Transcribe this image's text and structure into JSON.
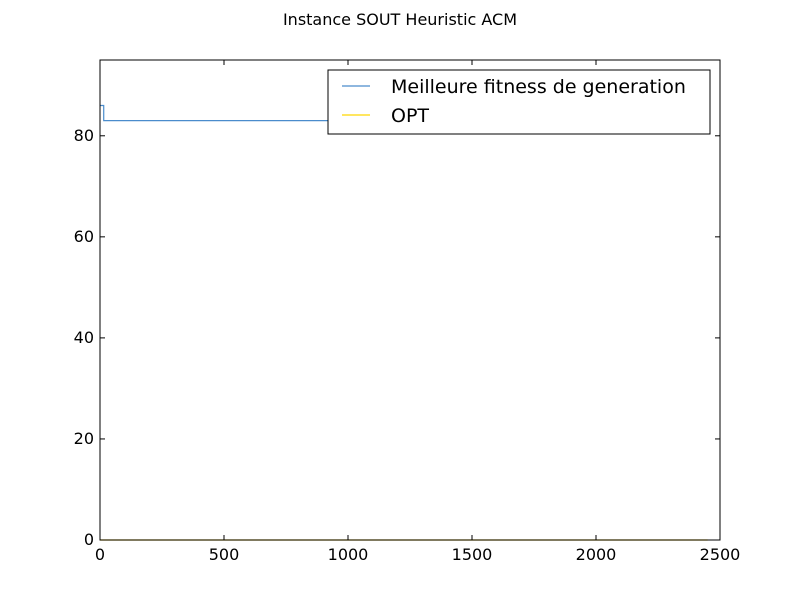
{
  "chart_data": {
    "type": "line",
    "title": "Instance SOUT Heuristic ACM",
    "xlabel": "",
    "ylabel": "",
    "xlim": [
      0,
      2500
    ],
    "ylim": [
      0,
      95
    ],
    "xticks": [
      0,
      500,
      1000,
      1500,
      2000,
      2500
    ],
    "yticks": [
      0,
      20,
      40,
      60,
      80
    ],
    "grid": false,
    "legend_position": "top-right",
    "series": [
      {
        "name": "Meilleure fitness de generation",
        "color": "#4a8ccc",
        "step": true,
        "x": [
          0,
          15,
          15,
          2450
        ],
        "y": [
          86,
          86,
          83,
          83
        ]
      },
      {
        "name": "OPT",
        "color": "#ffd700",
        "step": false,
        "x": [
          0,
          2450
        ],
        "y": [
          0,
          0
        ]
      }
    ]
  }
}
